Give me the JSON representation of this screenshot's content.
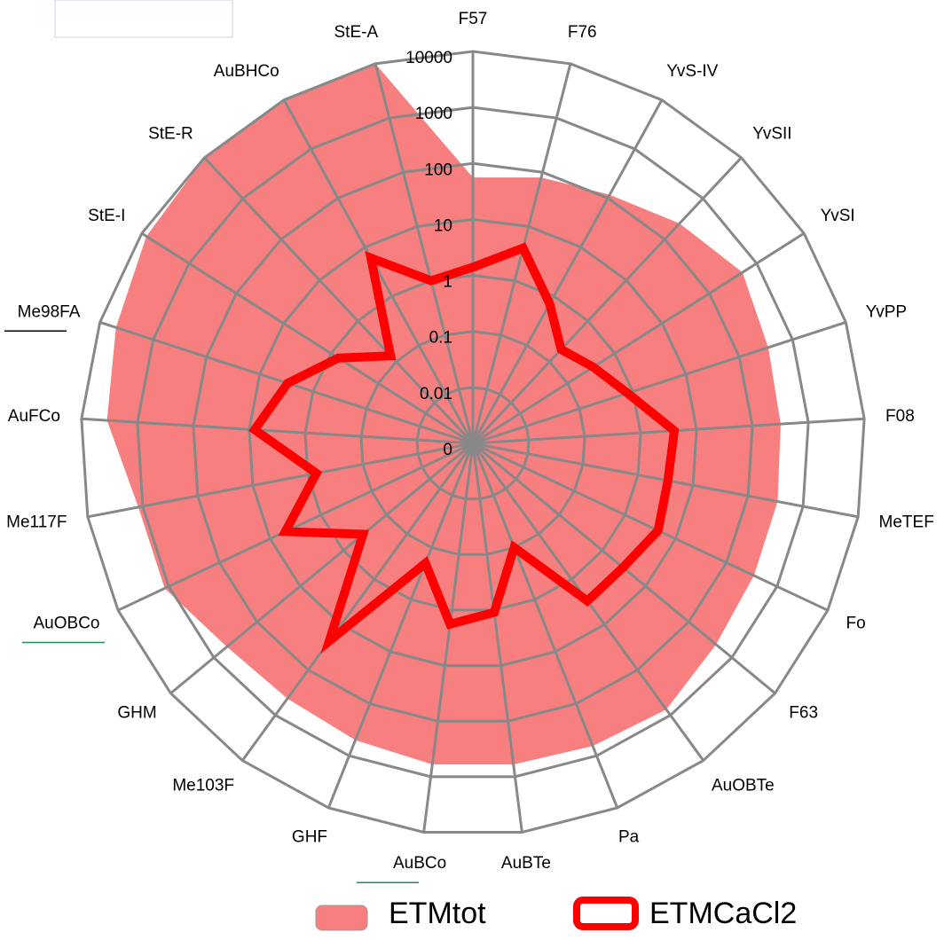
{
  "chart_data": {
    "type": "radar",
    "categories": [
      "F57",
      "F76",
      "YvS-IV",
      "YvSII",
      "YvSI",
      "YvPP",
      "F08",
      "MeTEF",
      "Fo",
      "F63",
      "AuOBTe",
      "Pa",
      "AuBTe",
      "AuBCo",
      "GHF",
      "Me103F",
      "GHM",
      "AuOBCo",
      "Me117F",
      "AuFCo",
      "Me98FA",
      "StE-I",
      "StE-R",
      "AuBHCo",
      "StE-A"
    ],
    "log_scale": true,
    "ylim": [
      0.001,
      10000
    ],
    "yticks": [
      {
        "value": 0.001,
        "label": "0"
      },
      0.01,
      0.1,
      1,
      10,
      100,
      1000,
      10000
    ],
    "series": [
      {
        "name": "ETMtot",
        "color": "#f77f7f",
        "fill": true,
        "values": [
          56,
          80,
          117,
          245,
          500,
          350,
          320,
          345,
          350,
          430,
          750,
          650,
          600,
          600,
          500,
          430,
          500,
          1200,
          1200,
          3500,
          5000,
          8000,
          10000,
          10000,
          10000
        ]
      },
      {
        "name": "ETMCaCl2",
        "color": "#ff0000",
        "fill": false,
        "values": [
          1.4,
          4,
          0.7,
          0.2,
          0.35,
          0.8,
          4,
          3.5,
          4.5,
          3,
          3,
          0.1,
          1.1,
          1.8,
          0.2,
          23,
          0.35,
          5,
          0.7,
          8,
          3,
          0.7,
          0.14,
          6,
          1
        ]
      }
    ],
    "legend": "bottom",
    "grid": true
  }
}
